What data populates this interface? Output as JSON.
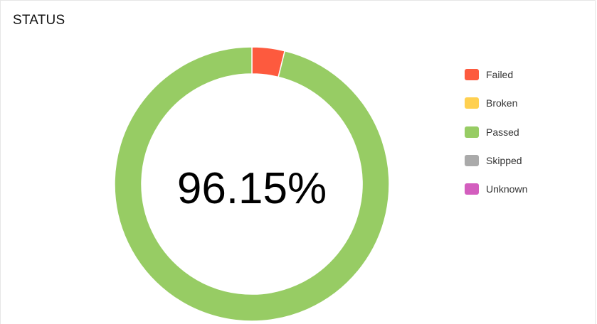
{
  "widget": {
    "title": "STATUS"
  },
  "chart_data": {
    "type": "pie",
    "variant": "donut",
    "center_label": "96.15%",
    "series": [
      {
        "name": "Failed",
        "value": 3.85,
        "color": "#fd5a3e"
      },
      {
        "name": "Broken",
        "value": 0,
        "color": "#ffd050"
      },
      {
        "name": "Passed",
        "value": 96.15,
        "color": "#97cc64"
      },
      {
        "name": "Skipped",
        "value": 0,
        "color": "#aaaaaa"
      },
      {
        "name": "Unknown",
        "value": 0,
        "color": "#d35ebe"
      }
    ],
    "legend_position": "right"
  }
}
